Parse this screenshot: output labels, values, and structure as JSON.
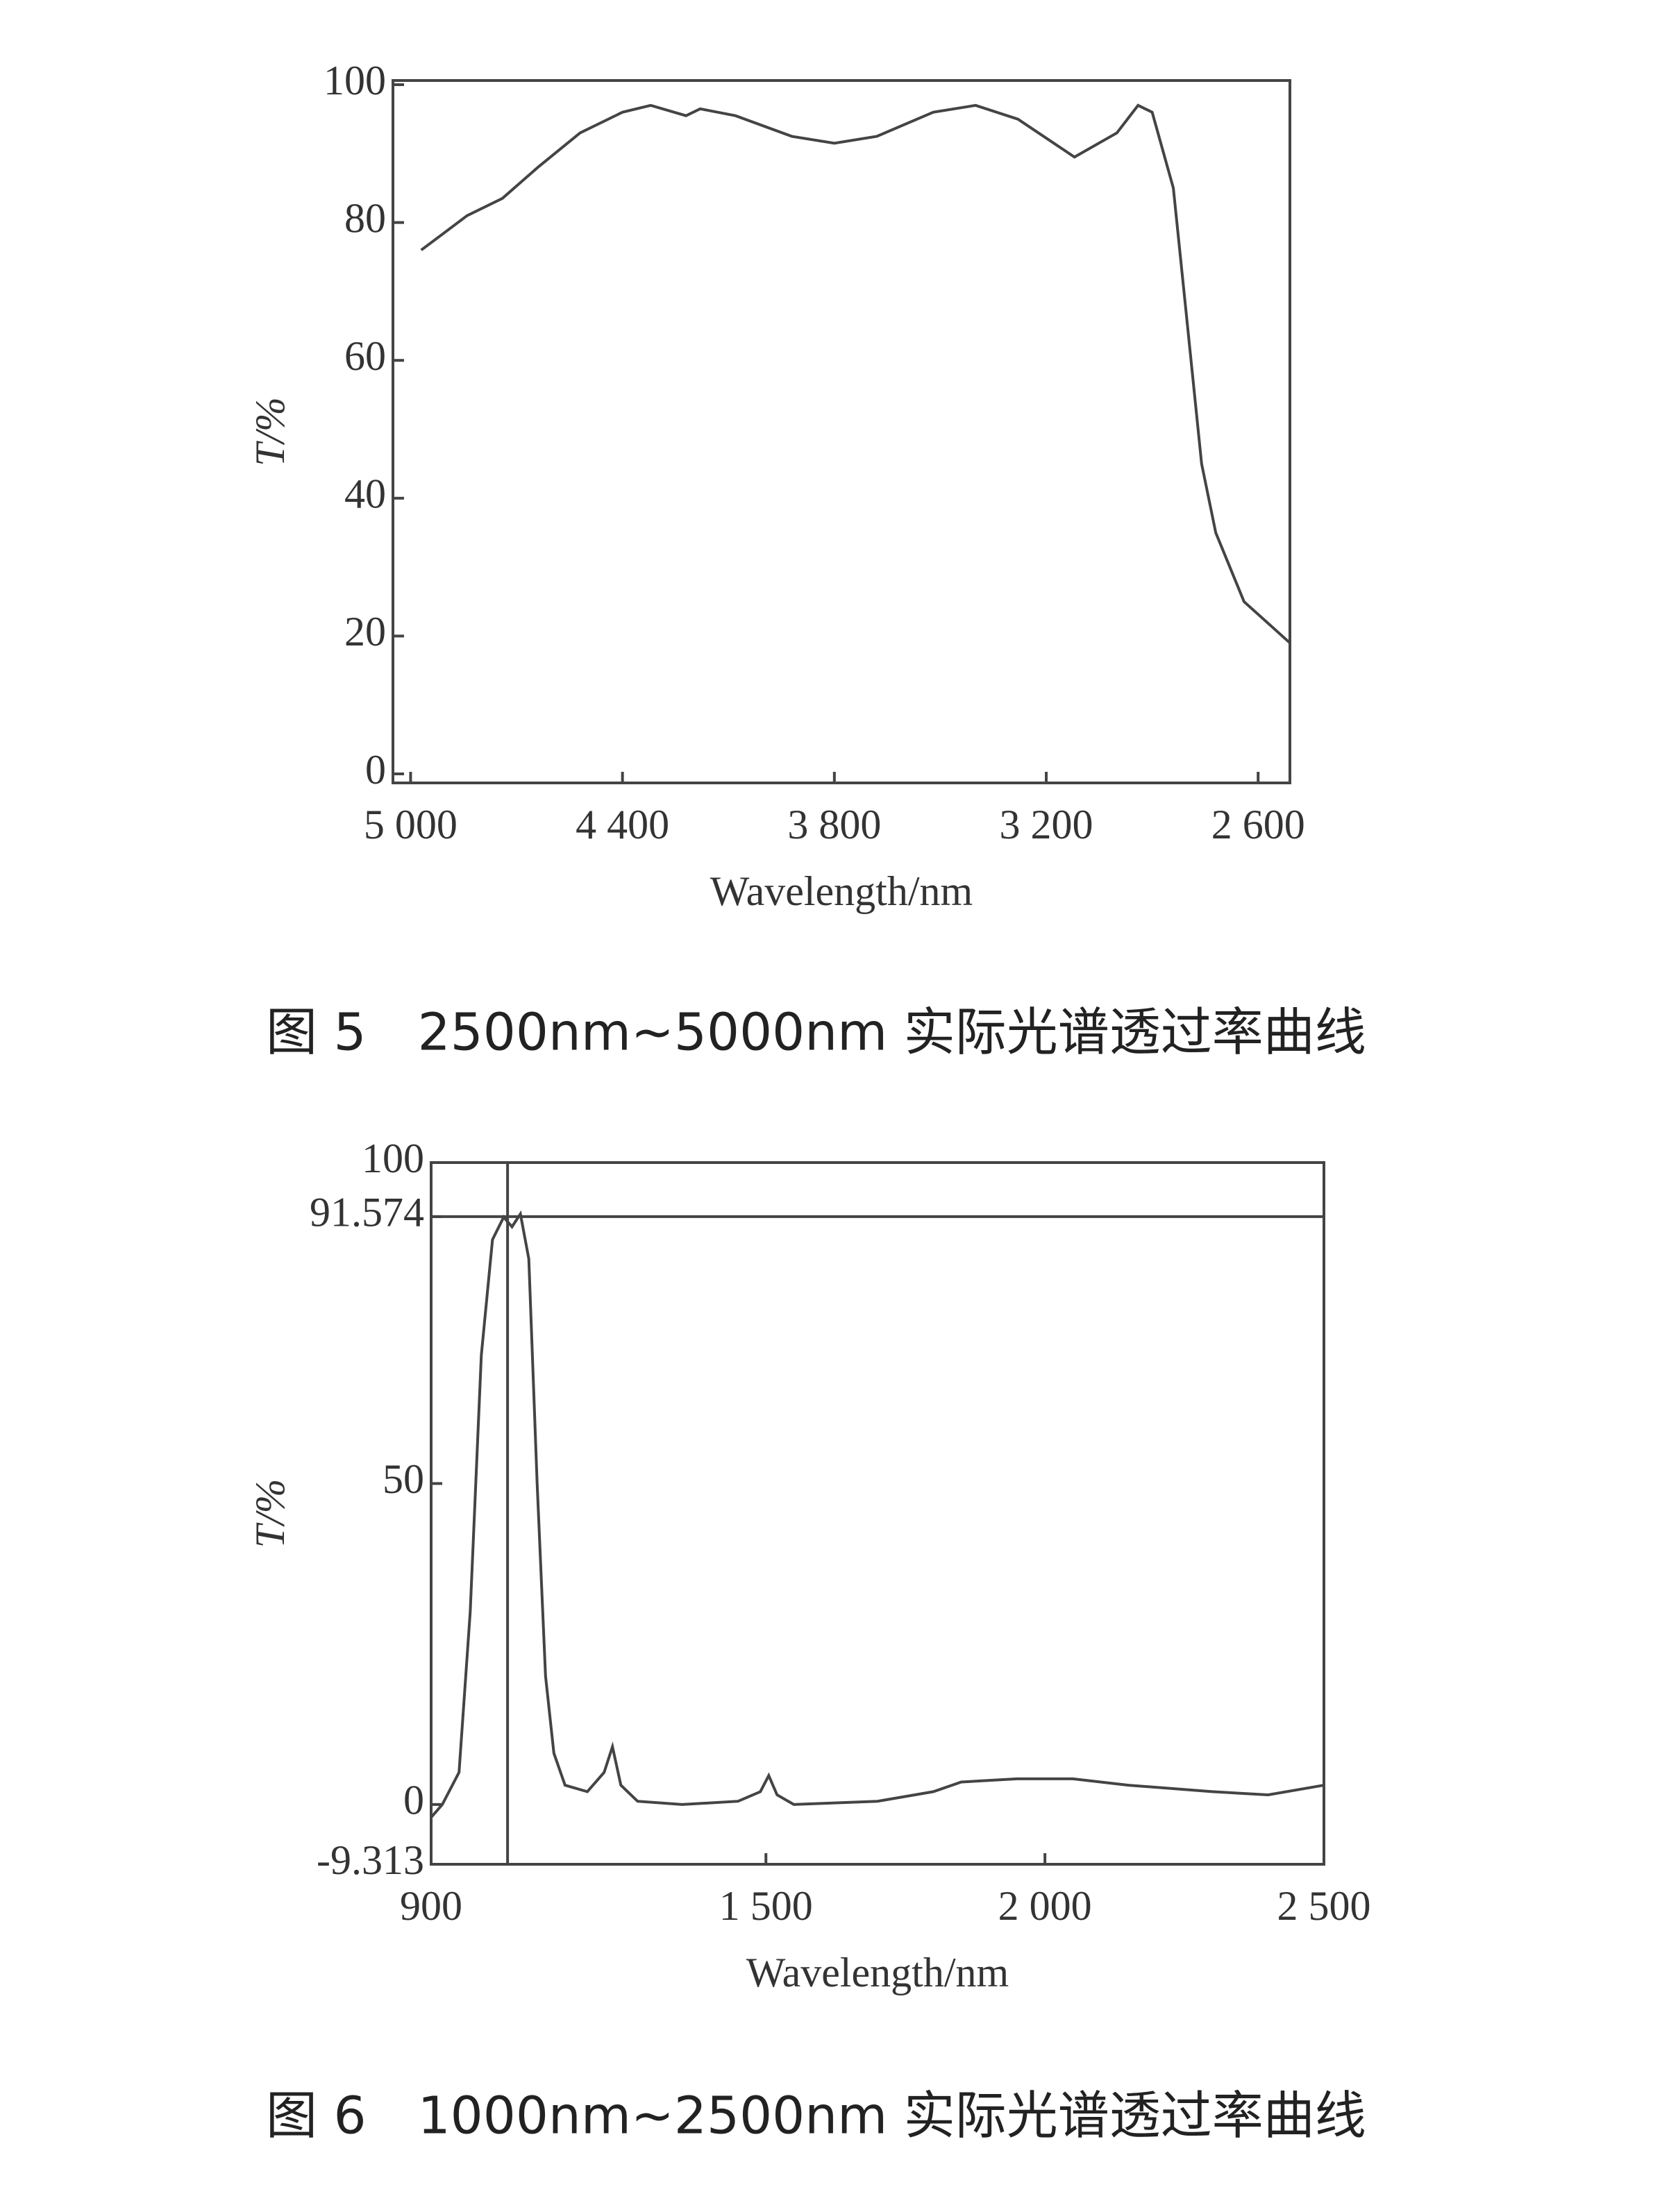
{
  "chart_data": [
    {
      "type": "line",
      "xlabel": "Wavelength/nm",
      "ylabel": "T/%",
      "caption": "图 5　2500nm~5000nm 实际光谱透过率曲线",
      "xlim": [
        5050,
        2510
      ],
      "ylim": [
        0,
        100
      ],
      "xticks": [
        {
          "value": 5000,
          "label": "5 000"
        },
        {
          "value": 4400,
          "label": "4 400"
        },
        {
          "value": 3800,
          "label": "3 800"
        },
        {
          "value": 3200,
          "label": "3 200"
        },
        {
          "value": 2600,
          "label": "2 600"
        }
      ],
      "yticks": [
        0,
        20,
        40,
        60,
        80,
        100
      ],
      "series": [
        {
          "color": "#444444",
          "x": [
            4970,
            4840,
            4740,
            4640,
            4520,
            4400,
            4320,
            4220,
            4180,
            4080,
            3920,
            3800,
            3680,
            3520,
            3400,
            3280,
            3120,
            3000,
            2940,
            2900,
            2840,
            2800,
            2760,
            2720,
            2640,
            2510
          ],
          "values": [
            76,
            81,
            83.5,
            88,
            93,
            96,
            97,
            95.5,
            96.5,
            95.5,
            92.5,
            91.5,
            92.5,
            96,
            97,
            95,
            89.5,
            93,
            97,
            96,
            85,
            65,
            45,
            35,
            25,
            19
          ]
        }
      ]
    },
    {
      "type": "line",
      "xlabel": "Wavelength/nm",
      "ylabel": "T/%",
      "caption": "图 6　1000nm~2500nm 实际光谱透过率曲线",
      "xlim": [
        900,
        2500
      ],
      "ylim": [
        -9.313,
        100
      ],
      "xticks": [
        900,
        {
          "value": 1500,
          "label": "1 500"
        },
        {
          "value": 2000,
          "label": "2 000"
        },
        {
          "value": 2500,
          "label": "2 500"
        }
      ],
      "yticks": [
        -9.313,
        0,
        50,
        91.574,
        100
      ],
      "hline": 91.574,
      "vline": 1037,
      "series": [
        {
          "color": "#444444",
          "x": [
            900,
            920,
            950,
            970,
            990,
            1010,
            1030,
            1045,
            1060,
            1075,
            1090,
            1105,
            1120,
            1140,
            1180,
            1210,
            1225,
            1240,
            1270,
            1350,
            1450,
            1490,
            1505,
            1520,
            1550,
            1700,
            1800,
            1850,
            1950,
            2050,
            2150,
            2300,
            2400,
            2500
          ],
          "values": [
            -2,
            0,
            5,
            30,
            70,
            88,
            91.5,
            90,
            92,
            85,
            50,
            20,
            8,
            3,
            2,
            5,
            9,
            3,
            0.5,
            0,
            0.5,
            2,
            4.5,
            1.5,
            0,
            0.5,
            2,
            3.5,
            4,
            4,
            3,
            2,
            1.5,
            3
          ]
        }
      ]
    }
  ]
}
